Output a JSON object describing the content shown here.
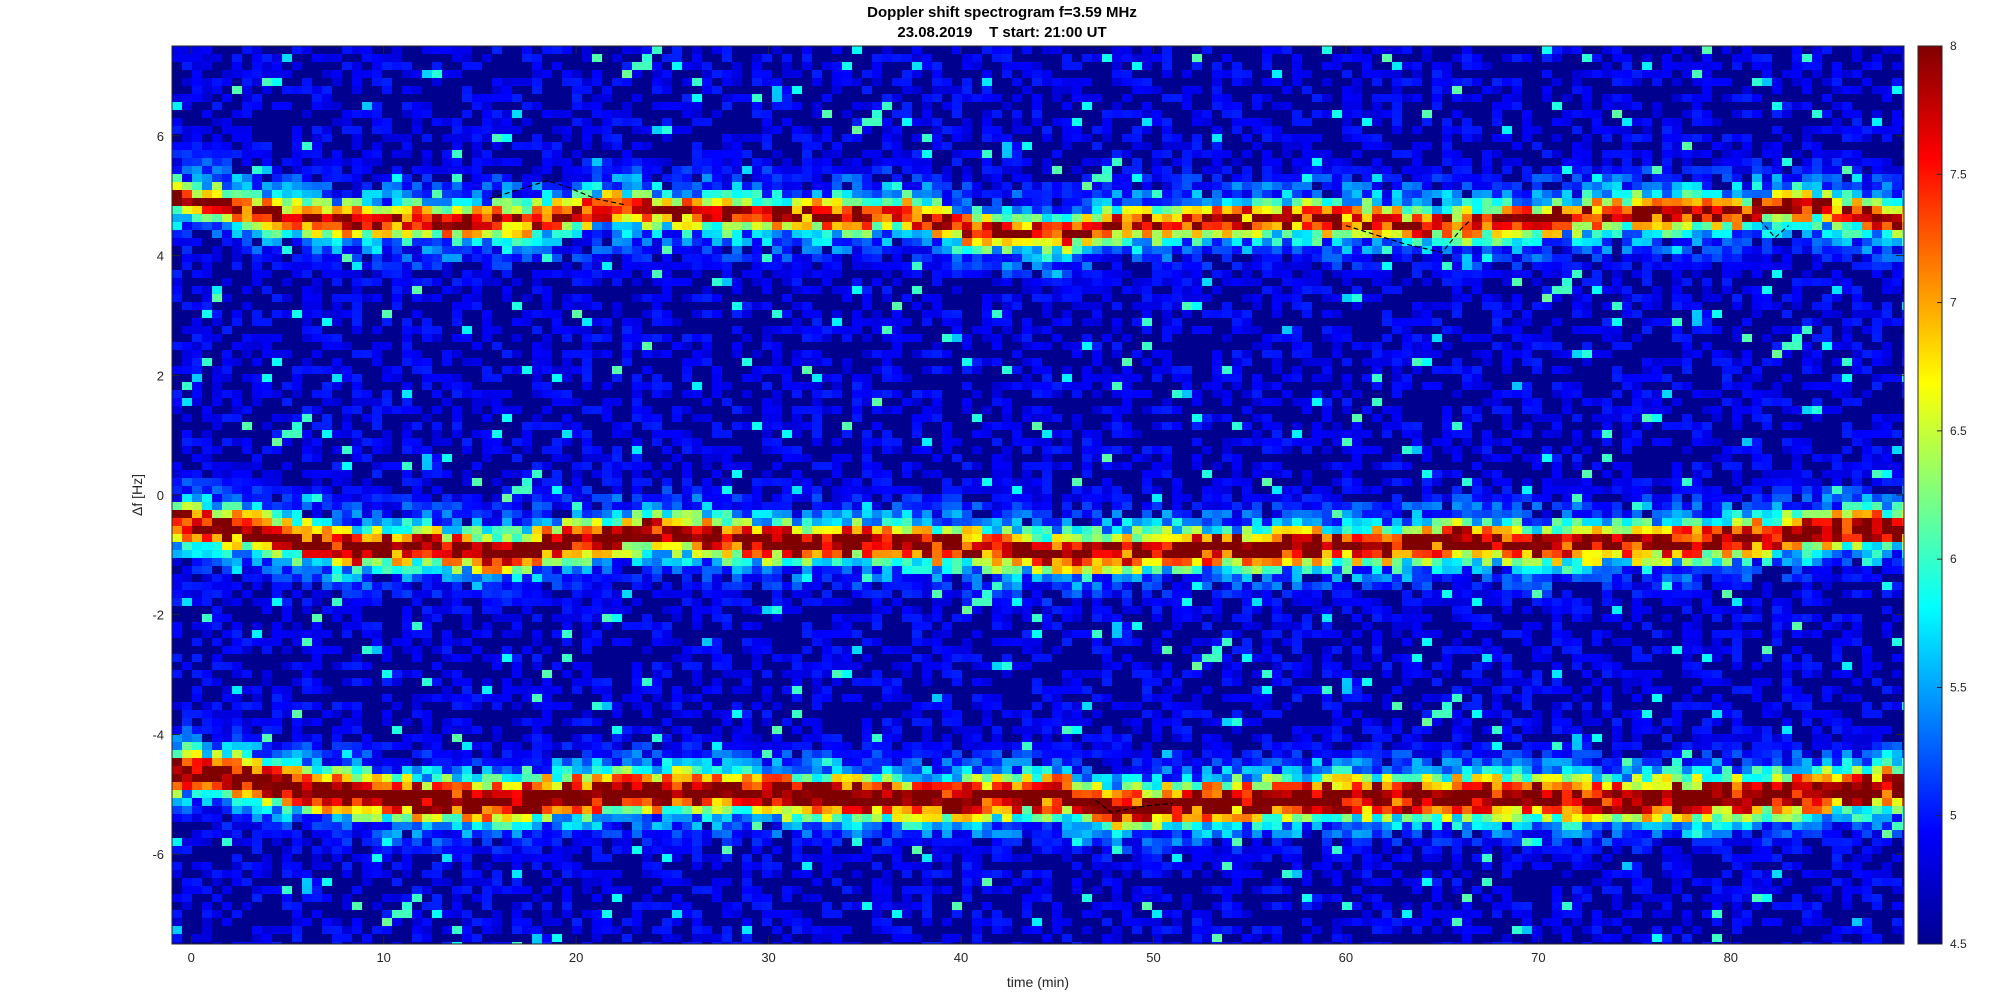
{
  "chart_data": {
    "type": "heatmap",
    "title": "Doppler shift spectrogram f=3.59 MHz",
    "subtitle": "23.08.2019    T start: 21:00 UT",
    "xlabel": "time (min)",
    "ylabel": "Δf [Hz]",
    "xlim": [
      -1,
      89
    ],
    "ylim": [
      -7.5,
      7.5
    ],
    "x_ticks": [
      0,
      10,
      20,
      30,
      40,
      50,
      60,
      70,
      80
    ],
    "x_tick_labels": [
      "0",
      "10",
      "20",
      "30",
      "40",
      "50",
      "60",
      "70",
      "80"
    ],
    "y_ticks": [
      6,
      4,
      2,
      0,
      -2,
      -4,
      -6
    ],
    "y_tick_labels": [
      "6",
      "4",
      "2",
      "0",
      "-2",
      "-4",
      "-6"
    ],
    "colorbar": {
      "range": [
        4.5,
        8
      ],
      "ticks": [
        8,
        7.5,
        7,
        6.5,
        6,
        5.5,
        5,
        4.5
      ],
      "tick_labels": [
        "8",
        "7.5",
        "7",
        "6.5",
        "6",
        "5.5",
        "5",
        "4.5"
      ],
      "colormap": "jet",
      "position": "right"
    },
    "bands": [
      {
        "points": [
          [
            -1,
            4.95
          ],
          [
            2,
            4.85
          ],
          [
            5,
            4.65
          ],
          [
            9,
            4.55
          ],
          [
            14,
            4.55
          ],
          [
            18,
            4.6
          ],
          [
            22,
            4.8
          ],
          [
            27,
            4.7
          ],
          [
            32,
            4.65
          ],
          [
            37,
            4.7
          ],
          [
            41,
            4.4
          ],
          [
            45,
            4.35
          ],
          [
            50,
            4.55
          ],
          [
            55,
            4.6
          ],
          [
            60,
            4.6
          ],
          [
            65,
            4.5
          ],
          [
            70,
            4.6
          ],
          [
            75,
            4.7
          ],
          [
            80,
            4.7
          ],
          [
            84,
            4.85
          ],
          [
            89,
            4.55
          ]
        ],
        "width": 0.35,
        "peak": 7.4
      },
      {
        "points": [
          [
            -1,
            -0.45
          ],
          [
            3,
            -0.6
          ],
          [
            8,
            -0.9
          ],
          [
            12,
            -0.85
          ],
          [
            16,
            -1.0
          ],
          [
            20,
            -0.75
          ],
          [
            24,
            -0.6
          ],
          [
            30,
            -0.8
          ],
          [
            36,
            -0.8
          ],
          [
            40,
            -0.85
          ],
          [
            45,
            -1.0
          ],
          [
            50,
            -0.9
          ],
          [
            55,
            -0.9
          ],
          [
            60,
            -0.85
          ],
          [
            64,
            -0.85
          ],
          [
            66,
            -0.75
          ],
          [
            70,
            -0.85
          ],
          [
            75,
            -0.8
          ],
          [
            80,
            -0.75
          ],
          [
            85,
            -0.6
          ],
          [
            89,
            -0.55
          ]
        ],
        "width": 0.4,
        "peak": 7.8
      },
      {
        "points": [
          [
            -1,
            -4.6
          ],
          [
            3,
            -4.75
          ],
          [
            8,
            -5.0
          ],
          [
            12,
            -5.1
          ],
          [
            16,
            -5.15
          ],
          [
            20,
            -5.0
          ],
          [
            25,
            -4.95
          ],
          [
            30,
            -5.0
          ],
          [
            35,
            -5.05
          ],
          [
            40,
            -5.1
          ],
          [
            45,
            -5.0
          ],
          [
            48,
            -5.25
          ],
          [
            52,
            -5.15
          ],
          [
            56,
            -5.1
          ],
          [
            60,
            -5.05
          ],
          [
            65,
            -5.05
          ],
          [
            70,
            -5.05
          ],
          [
            75,
            -5.1
          ],
          [
            80,
            -5.05
          ],
          [
            85,
            -4.95
          ],
          [
            89,
            -4.9
          ]
        ],
        "width": 0.45,
        "peak": 7.9
      }
    ],
    "traces": [
      {
        "color": "#000000",
        "points": [
          [
            15.5,
            4.95
          ],
          [
            17,
            5.1
          ],
          [
            18.5,
            5.25
          ],
          [
            19.5,
            5.15
          ],
          [
            21,
            4.95
          ],
          [
            22.5,
            4.85
          ]
        ]
      },
      {
        "color": "#000000",
        "points": [
          [
            60,
            4.5
          ],
          [
            61.5,
            4.35
          ],
          [
            63,
            4.2
          ],
          [
            65,
            4.05
          ],
          [
            66,
            4.45
          ],
          [
            66.5,
            4.6
          ]
        ]
      },
      {
        "color": "#000000",
        "points": [
          [
            81.5,
            4.6
          ],
          [
            82.3,
            4.3
          ],
          [
            83,
            4.5
          ]
        ]
      },
      {
        "color": "#000000",
        "points": [
          [
            47,
            -5.1
          ],
          [
            47.8,
            -5.3
          ],
          [
            49.5,
            -5.2
          ],
          [
            51,
            -5.15
          ]
        ]
      }
    ]
  }
}
